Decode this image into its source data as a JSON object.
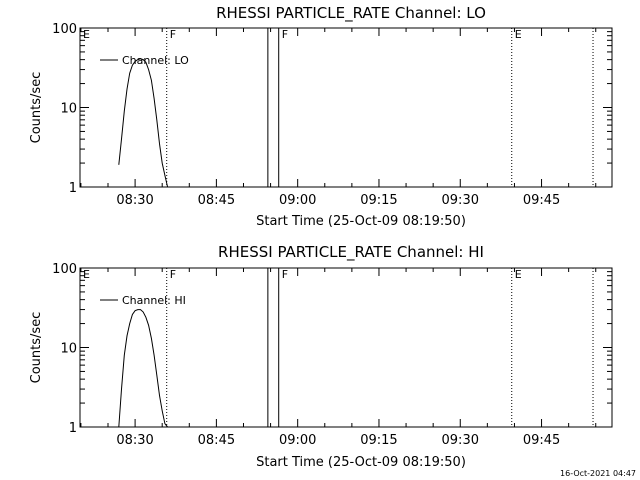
{
  "footer": {
    "timestamp": "16-Oct-2021 04:47"
  },
  "chart_data": [
    {
      "type": "line",
      "title": "RHESSI PARTICLE_RATE Channel: LO",
      "xlabel": "Start Time (25-Oct-09 08:19:50)",
      "ylabel": "Counts/sec",
      "yscale": "log",
      "ylim": [
        1,
        100
      ],
      "xlim": [
        "08:19:50",
        "09:58:00"
      ],
      "x_ticks": [
        "08:30",
        "08:45",
        "09:00",
        "09:15",
        "09:30",
        "09:45"
      ],
      "y_ticks": [
        "1",
        "10",
        "100"
      ],
      "legend": "Channel: LO",
      "legend_position": "top-left",
      "series": [
        {
          "name": "Channel: LO",
          "x": [
            "08:27:00",
            "08:27:30",
            "08:28:00",
            "08:28:30",
            "08:29:00",
            "08:29:30",
            "08:30:00",
            "08:30:30",
            "08:31:00",
            "08:31:30",
            "08:32:00",
            "08:32:30",
            "08:33:00",
            "08:33:30",
            "08:34:00",
            "08:34:30",
            "08:35:00",
            "08:35:30",
            "08:36:00"
          ],
          "y": [
            1.9,
            4,
            9,
            17,
            27,
            34,
            38,
            40,
            41,
            40,
            37,
            30,
            22,
            13,
            7,
            3.5,
            2,
            1.4,
            1
          ]
        }
      ],
      "markers": [
        {
          "time": "08:19:50",
          "label": "E",
          "style": "dotted"
        },
        {
          "time": "08:35:50",
          "label": "F",
          "style": "dotted"
        },
        {
          "time": "08:54:30",
          "label": "",
          "style": "solid"
        },
        {
          "time": "08:56:30",
          "label": "F",
          "style": "solid"
        },
        {
          "time": "09:39:30",
          "label": "E",
          "style": "dotted"
        },
        {
          "time": "09:54:30",
          "label": "",
          "style": "dotted"
        }
      ]
    },
    {
      "type": "line",
      "title": "RHESSI PARTICLE_RATE Channel: HI",
      "xlabel": "Start Time (25-Oct-09 08:19:50)",
      "ylabel": "Counts/sec",
      "yscale": "log",
      "ylim": [
        1,
        100
      ],
      "xlim": [
        "08:19:50",
        "09:58:00"
      ],
      "x_ticks": [
        "08:30",
        "08:45",
        "09:00",
        "09:15",
        "09:30",
        "09:45"
      ],
      "y_ticks": [
        "1",
        "10",
        "100"
      ],
      "legend": "Channel: HI",
      "legend_position": "top-left",
      "series": [
        {
          "name": "Channel: HI",
          "x": [
            "08:27:00",
            "08:27:30",
            "08:28:00",
            "08:28:30",
            "08:29:00",
            "08:29:30",
            "08:30:00",
            "08:30:30",
            "08:31:00",
            "08:31:30",
            "08:32:00",
            "08:32:30",
            "08:33:00",
            "08:33:30",
            "08:34:00",
            "08:34:30",
            "08:35:00",
            "08:35:30",
            "08:36:00"
          ],
          "y": [
            1,
            3,
            8,
            14,
            20,
            26,
            29,
            30,
            30,
            28,
            24,
            19,
            13,
            8,
            4.5,
            2.5,
            1.6,
            1.1,
            1
          ]
        }
      ],
      "markers": [
        {
          "time": "08:19:50",
          "label": "E",
          "style": "dotted"
        },
        {
          "time": "08:35:50",
          "label": "F",
          "style": "dotted"
        },
        {
          "time": "08:54:30",
          "label": "",
          "style": "solid"
        },
        {
          "time": "08:56:30",
          "label": "F",
          "style": "solid"
        },
        {
          "time": "09:39:30",
          "label": "E",
          "style": "dotted"
        },
        {
          "time": "09:54:30",
          "label": "",
          "style": "dotted"
        }
      ]
    }
  ]
}
